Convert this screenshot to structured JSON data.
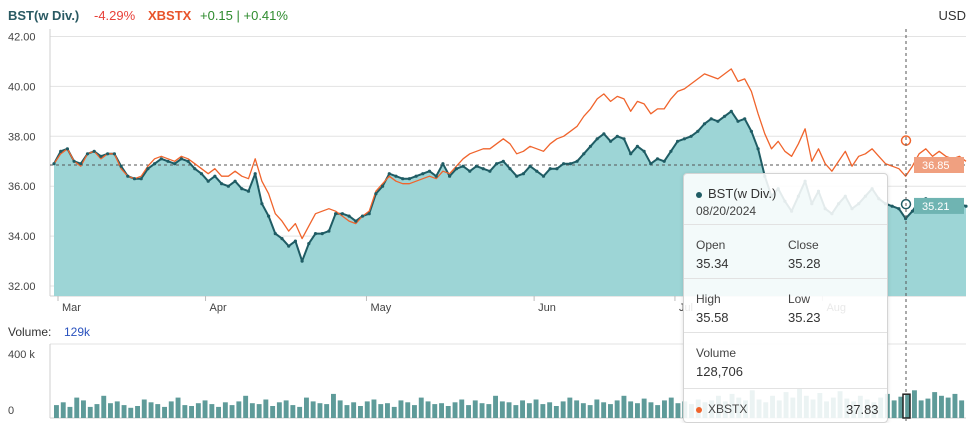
{
  "header": {
    "ticker_label": "BST(w Div.)",
    "ticker_change": "-4.29%",
    "compare_label": "XBSTX",
    "compare_change": "+0.15 | +0.41%",
    "currency": "USD"
  },
  "volume_panel": {
    "title": "Volume:",
    "current": "129k",
    "axis_labels": [
      "400 k",
      "0"
    ]
  },
  "tooltip": {
    "name": "BST(w Div.)",
    "date": "08/20/2024",
    "open_label": "Open",
    "open": "35.34",
    "close_label": "Close",
    "close": "35.28",
    "high_label": "High",
    "high": "35.58",
    "low_label": "Low",
    "low": "35.23",
    "volume_label": "Volume",
    "volume": "128,706",
    "compare_name": "XBSTX",
    "compare_value": "37.83"
  },
  "price_tags": {
    "xbstx_last": "36.85",
    "bst_last": "35.21"
  },
  "colors": {
    "bst_line": "#1f5c64",
    "bst_fill": "#9dd5d6",
    "xbstx_line": "#f0642c",
    "volume_bar": "#5e9b99",
    "grid": "#e3e3e3",
    "tag_orange": "#f0a080",
    "tag_teal": "#6fb4b2"
  },
  "chart_data": {
    "type": "line",
    "title": "",
    "xlabel": "",
    "ylabel": "",
    "ylim": [
      31.6,
      42.3
    ],
    "x_tick_labels": [
      "Mar",
      "Apr",
      "May",
      "Jun",
      "Jul",
      "Aug"
    ],
    "y_tick_labels": [
      "42.00",
      "40.00",
      "38.00",
      "36.00",
      "34.00",
      "32.00"
    ],
    "reference_line": 36.85,
    "series": [
      {
        "name": "BST(w Div.)",
        "values": [
          36.9,
          37.4,
          37.5,
          37.0,
          36.9,
          37.3,
          37.4,
          37.2,
          37.3,
          37.3,
          36.8,
          36.4,
          36.3,
          36.3,
          36.7,
          36.9,
          37.1,
          37.0,
          36.9,
          37.1,
          37.0,
          36.7,
          36.5,
          36.2,
          36.4,
          36.1,
          36.0,
          36.2,
          35.9,
          35.8,
          36.5,
          35.3,
          34.8,
          34.1,
          33.9,
          33.6,
          33.8,
          33.0,
          33.7,
          34.1,
          34.1,
          34.2,
          34.9,
          34.9,
          34.8,
          34.6,
          34.8,
          34.9,
          35.7,
          36.0,
          36.5,
          36.4,
          36.3,
          36.3,
          36.4,
          36.5,
          36.6,
          36.4,
          36.9,
          36.4,
          36.7,
          36.8,
          36.6,
          36.8,
          36.7,
          36.6,
          36.9,
          37.0,
          36.7,
          36.4,
          36.5,
          36.8,
          36.6,
          36.4,
          36.7,
          36.7,
          36.9,
          36.9,
          37.0,
          37.3,
          37.6,
          37.9,
          38.1,
          37.8,
          38.0,
          37.9,
          37.3,
          37.6,
          37.4,
          36.9,
          37.1,
          37.0,
          37.4,
          37.8,
          37.9,
          38.0,
          38.2,
          38.5,
          38.7,
          38.6,
          38.8,
          39.0,
          38.6,
          38.7,
          38.2,
          37.5,
          36.4,
          35.6,
          35.9,
          35.4,
          35.0,
          35.6,
          36.2,
          35.3,
          35.8,
          35.1,
          34.9,
          35.3,
          35.6,
          35.1,
          35.3,
          35.6,
          35.9,
          35.5,
          35.3,
          35.2,
          35.1,
          34.7,
          35.0,
          35.4,
          35.5,
          35.2,
          35.3,
          35.1,
          35.1,
          35.3,
          35.2
        ],
        "last_value": 35.21
      },
      {
        "name": "XBSTX",
        "values": [
          36.9,
          37.3,
          37.5,
          37.0,
          36.8,
          37.3,
          37.4,
          37.1,
          37.3,
          37.3,
          36.7,
          36.4,
          36.3,
          36.4,
          36.8,
          37.1,
          37.2,
          37.1,
          37.0,
          37.2,
          37.1,
          36.9,
          36.7,
          36.5,
          36.7,
          36.4,
          36.4,
          36.6,
          36.4,
          36.3,
          37.1,
          36.2,
          35.7,
          34.9,
          34.6,
          34.2,
          34.5,
          33.9,
          34.4,
          34.9,
          35.0,
          35.1,
          35.0,
          34.8,
          34.6,
          34.5,
          34.8,
          35.0,
          35.8,
          36.1,
          36.4,
          36.2,
          36.1,
          36.1,
          36.2,
          36.3,
          36.4,
          36.3,
          36.6,
          36.5,
          36.8,
          37.1,
          37.3,
          37.4,
          37.5,
          37.5,
          37.7,
          37.9,
          37.7,
          37.3,
          37.4,
          37.6,
          37.5,
          37.4,
          37.7,
          37.9,
          38.0,
          38.2,
          38.4,
          38.8,
          39.1,
          39.5,
          39.7,
          39.4,
          39.6,
          39.5,
          39.0,
          39.4,
          39.3,
          38.9,
          39.1,
          39.1,
          39.5,
          39.8,
          39.9,
          40.1,
          40.3,
          40.5,
          40.4,
          40.3,
          40.5,
          40.7,
          40.2,
          40.3,
          39.8,
          38.9,
          38.1,
          37.5,
          37.8,
          37.4,
          37.2,
          37.7,
          38.3,
          37.0,
          37.5,
          36.9,
          36.6,
          37.0,
          37.4,
          36.8,
          37.2,
          37.3,
          37.5,
          37.2,
          36.9,
          36.8,
          36.7,
          36.4,
          36.8,
          37.3,
          37.5,
          37.2,
          37.4,
          37.2,
          37.1,
          37.2,
          37.0
        ],
        "last_value": 36.85
      }
    ],
    "volume": {
      "ylim": [
        0,
        400000
      ],
      "values": [
        70,
        85,
        60,
        110,
        95,
        60,
        75,
        120,
        80,
        90,
        70,
        55,
        65,
        100,
        85,
        75,
        60,
        90,
        110,
        70,
        65,
        80,
        95,
        75,
        60,
        85,
        70,
        90,
        120,
        80,
        75,
        100,
        65,
        85,
        95,
        70,
        60,
        110,
        90,
        80,
        75,
        130,
        95,
        70,
        85,
        65,
        90,
        100,
        75,
        80,
        60,
        95,
        85,
        70,
        110,
        90,
        75,
        80,
        65,
        85,
        100,
        70,
        95,
        80,
        75,
        120,
        90,
        85,
        70,
        95,
        80,
        100,
        75,
        85,
        65,
        90,
        110,
        95,
        80,
        70,
        100,
        85,
        75,
        95,
        120,
        90,
        80,
        105,
        85,
        70,
        95,
        110,
        80,
        90,
        75,
        100,
        85,
        95,
        120,
        90,
        130,
        110,
        95,
        150,
        100,
        85,
        120,
        95,
        140,
        110,
        160,
        120,
        100,
        135,
        90,
        110,
        145,
        105,
        90,
        120,
        100,
        85,
        110,
        130,
        95,
        115,
        125,
        150,
        95,
        105,
        140,
        120,
        110,
        130,
        95
      ],
      "highlight_value": 128706
    },
    "crosshair_date": "08/20/2024",
    "crosshair_value_xbstx": 37.83
  }
}
